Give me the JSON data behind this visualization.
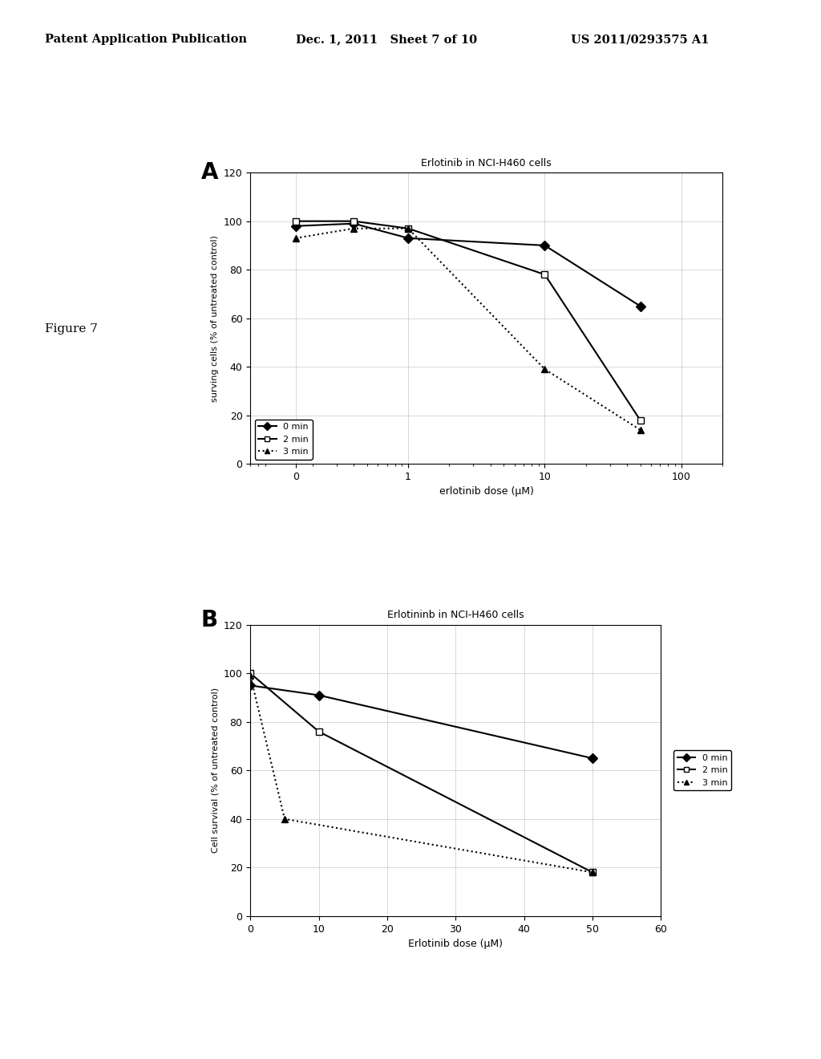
{
  "header_left": "Patent Application Publication",
  "header_mid": "Dec. 1, 2011   Sheet 7 of 10",
  "header_right": "US 2011/0293575 A1",
  "figure_label": "Figure 7",
  "panel_A": {
    "label": "A",
    "title": "Erlotinib in NCI-H460 cells",
    "xlabel": "erlotinib dose (μM)",
    "ylabel": "surving cells (% of untreated control)",
    "xlim": [
      0.07,
      200
    ],
    "xticks": [
      0.15,
      1,
      10,
      100
    ],
    "xticklabels": [
      "0",
      "1",
      "10",
      "100"
    ],
    "ylim": [
      0,
      120
    ],
    "yticks": [
      0,
      20,
      40,
      60,
      80,
      100,
      120
    ],
    "series": [
      {
        "label": "0 min",
        "x": [
          0.15,
          0.4,
          1,
          10,
          50
        ],
        "y": [
          98,
          99,
          93,
          90,
          65
        ],
        "linestyle": "-",
        "marker": "D",
        "color": "#000000",
        "linewidth": 1.5,
        "markersize": 6
      },
      {
        "label": "2 min",
        "x": [
          0.15,
          0.4,
          1,
          10,
          50
        ],
        "y": [
          100,
          100,
          97,
          78,
          18
        ],
        "linestyle": "-",
        "marker": "s",
        "color": "#000000",
        "linewidth": 1.5,
        "markersize": 6,
        "markerfacecolor": "white"
      },
      {
        "label": "3 min",
        "x": [
          0.15,
          0.4,
          1,
          10,
          50
        ],
        "y": [
          93,
          97,
          97,
          39,
          14
        ],
        "linestyle": ":",
        "marker": "^",
        "color": "#000000",
        "linewidth": 1.5,
        "markersize": 6
      }
    ]
  },
  "panel_B": {
    "label": "B",
    "title": "Erlotininb in NCI-H460 cells",
    "xlabel": "Erlotinib dose (μM)",
    "ylabel": "Cell survival (% of untreated control)",
    "xlim": [
      0,
      60
    ],
    "xticks": [
      0,
      10,
      20,
      30,
      40,
      50,
      60
    ],
    "ylim": [
      0,
      120
    ],
    "yticks": [
      0,
      20,
      40,
      60,
      80,
      100,
      120
    ],
    "series": [
      {
        "label": "0 min",
        "x": [
          0,
          10,
          50
        ],
        "y": [
          95,
          91,
          65
        ],
        "linestyle": "-",
        "marker": "D",
        "color": "#000000",
        "linewidth": 1.5,
        "markersize": 6
      },
      {
        "label": "2 min",
        "x": [
          0,
          10,
          50
        ],
        "y": [
          100,
          76,
          18
        ],
        "linestyle": "-",
        "marker": "s",
        "color": "#000000",
        "linewidth": 1.5,
        "markersize": 6,
        "markerfacecolor": "white"
      },
      {
        "label": "3 min",
        "x": [
          0,
          5,
          50
        ],
        "y": [
          99,
          40,
          18
        ],
        "linestyle": ":",
        "marker": "^",
        "color": "#000000",
        "linewidth": 1.5,
        "markersize": 6
      }
    ]
  },
  "bg_color": "#ffffff",
  "font_color": "#000000"
}
